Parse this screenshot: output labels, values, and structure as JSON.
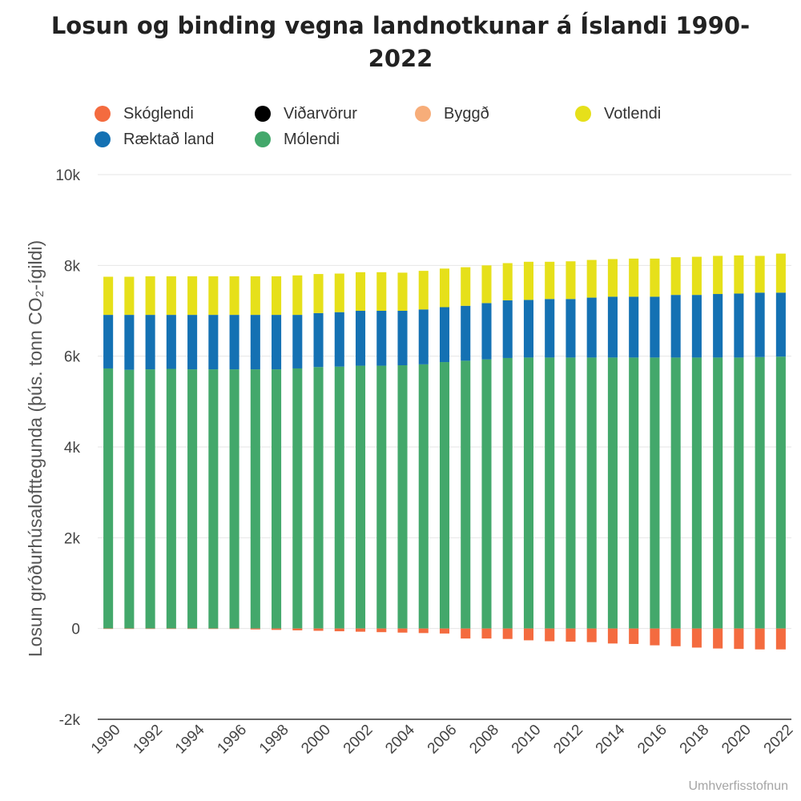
{
  "chart_data": {
    "type": "bar",
    "stacked": true,
    "title": "Losun og binding vegna landnotkunar á Íslandi 1990-2022",
    "ylabel": "Losun gróðurhúsalofttegunda (þús. tonn CO₂-ígildi)",
    "xlabel": "",
    "ylim": [
      -2000,
      10000
    ],
    "yticks": [
      -2000,
      0,
      2000,
      4000,
      6000,
      8000,
      10000
    ],
    "ytick_labels": [
      "-2k",
      "0",
      "2k",
      "4k",
      "6k",
      "8k",
      "10k"
    ],
    "grid": true,
    "legend_position": "top",
    "source": "Umhverfisstofnun",
    "categories": [
      1990,
      1991,
      1992,
      1993,
      1994,
      1995,
      1996,
      1997,
      1998,
      1999,
      2000,
      2001,
      2002,
      2003,
      2004,
      2005,
      2006,
      2007,
      2008,
      2009,
      2010,
      2011,
      2012,
      2013,
      2014,
      2015,
      2016,
      2017,
      2018,
      2019,
      2020,
      2021,
      2022
    ],
    "xtick_labels": [
      "1990",
      "1992",
      "1994",
      "1996",
      "1998",
      "2000",
      "2002",
      "2004",
      "2006",
      "2008",
      "2010",
      "2012",
      "2014",
      "2016",
      "2018",
      "2020",
      "2022"
    ],
    "series": [
      {
        "name": "Skóglendi",
        "color": "#f46b3f",
        "values": [
          -5,
          -5,
          -5,
          -5,
          -5,
          -5,
          -10,
          -20,
          -30,
          -40,
          -50,
          -60,
          -70,
          -80,
          -90,
          -100,
          -110,
          -220,
          -220,
          -230,
          -260,
          -280,
          -290,
          -300,
          -330,
          -340,
          -370,
          -390,
          -420,
          -440,
          -450,
          -460,
          -460
        ]
      },
      {
        "name": "Viðarvörur",
        "color": "#000000",
        "values": [
          0,
          0,
          0,
          0,
          0,
          0,
          0,
          0,
          0,
          0,
          0,
          0,
          0,
          0,
          0,
          0,
          0,
          0,
          0,
          0,
          0,
          0,
          0,
          0,
          0,
          0,
          0,
          0,
          0,
          0,
          0,
          0,
          0
        ]
      },
      {
        "name": "Byggð",
        "color": "#f7ad79",
        "values": [
          0,
          0,
          0,
          0,
          0,
          0,
          0,
          0,
          0,
          0,
          0,
          0,
          0,
          0,
          0,
          0,
          0,
          0,
          0,
          0,
          0,
          0,
          0,
          0,
          0,
          0,
          0,
          0,
          0,
          0,
          0,
          0,
          0
        ]
      },
      {
        "name": "Mólendi",
        "color": "#43a86b",
        "values": [
          5730,
          5700,
          5710,
          5720,
          5710,
          5710,
          5710,
          5710,
          5710,
          5730,
          5760,
          5770,
          5790,
          5790,
          5800,
          5820,
          5870,
          5900,
          5930,
          5960,
          5970,
          5970,
          5970,
          5970,
          5970,
          5970,
          5970,
          5970,
          5970,
          5970,
          5970,
          5980,
          5990
        ]
      },
      {
        "name": "Ræktað land",
        "color": "#1471b3",
        "values": [
          1180,
          1210,
          1200,
          1190,
          1200,
          1200,
          1200,
          1200,
          1200,
          1180,
          1190,
          1200,
          1210,
          1210,
          1200,
          1210,
          1210,
          1210,
          1240,
          1270,
          1270,
          1290,
          1290,
          1320,
          1340,
          1340,
          1340,
          1380,
          1380,
          1400,
          1410,
          1420,
          1410
        ]
      },
      {
        "name": "Votlendi",
        "color": "#e6e01a",
        "values": [
          840,
          840,
          850,
          850,
          850,
          850,
          850,
          850,
          850,
          870,
          860,
          850,
          850,
          850,
          840,
          850,
          850,
          850,
          830,
          820,
          840,
          820,
          830,
          830,
          830,
          840,
          840,
          830,
          840,
          840,
          840,
          810,
          860
        ]
      }
    ]
  },
  "legend_order": [
    "Skóglendi",
    "Viðarvörur",
    "Byggð",
    "Votlendi",
    "Ræktað land",
    "Mólendi"
  ]
}
